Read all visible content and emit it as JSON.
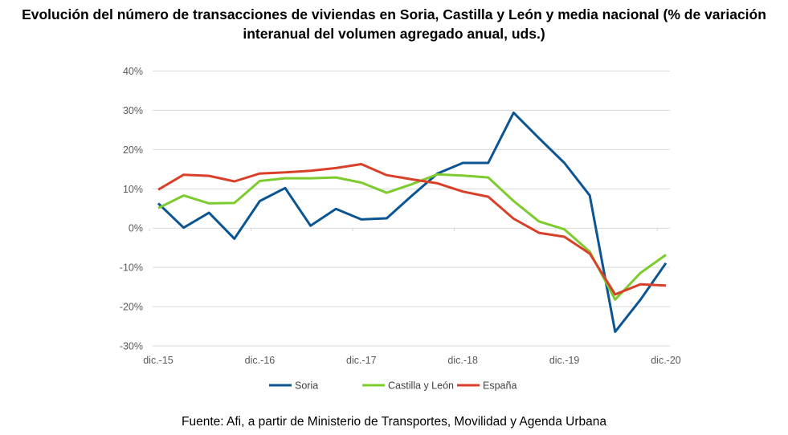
{
  "chart_data": {
    "type": "line",
    "title": "Evolución del número de transacciones de viviendas en Soria, Castilla y León y media nacional (% de variación interanual del volumen agregado anual, uds.)",
    "source": "Fuente: Afi, a partir de Ministerio de Transportes, Movilidad y Agenda Urbana",
    "xlabel": "",
    "ylabel": "",
    "ylim": [
      -30,
      40
    ],
    "yticks": [
      40,
      30,
      20,
      10,
      0,
      -10,
      -20,
      -30
    ],
    "ytick_labels": [
      "40%",
      "30%",
      "20%",
      "10%",
      "0%",
      "-10%",
      "-20%",
      "-30%"
    ],
    "xtick_labels": [
      "dic.-15",
      "dic.-16",
      "dic.-17",
      "dic.-18",
      "dic.-19",
      "dic.-20"
    ],
    "xtick_every": 4,
    "grid": true,
    "legend_position": "bottom",
    "series": [
      {
        "name": "Soria",
        "color": "#0A5592",
        "values": [
          6.3,
          0.1,
          3.9,
          -2.7,
          6.9,
          10.2,
          0.6,
          4.9,
          2.2,
          2.5,
          8.3,
          13.9,
          16.6,
          16.6,
          29.4,
          22.9,
          16.6,
          8.3,
          -26.4,
          -18.2,
          -8.9
        ]
      },
      {
        "name": "Castilla y León",
        "color": "#7DCB2E",
        "values": [
          5.1,
          8.3,
          6.3,
          6.4,
          12.0,
          12.7,
          12.7,
          12.9,
          11.6,
          9.0,
          11.2,
          13.7,
          13.4,
          12.9,
          6.9,
          1.7,
          -0.3,
          -6.0,
          -18.2,
          -11.4,
          -6.8
        ]
      },
      {
        "name": "España",
        "color": "#D9402A",
        "values": [
          9.8,
          13.6,
          13.3,
          11.9,
          13.9,
          14.2,
          14.6,
          15.3,
          16.3,
          13.5,
          12.4,
          11.4,
          9.3,
          8.0,
          2.4,
          -1.2,
          -2.2,
          -6.5,
          -16.9,
          -14.3,
          -14.6
        ]
      }
    ]
  }
}
